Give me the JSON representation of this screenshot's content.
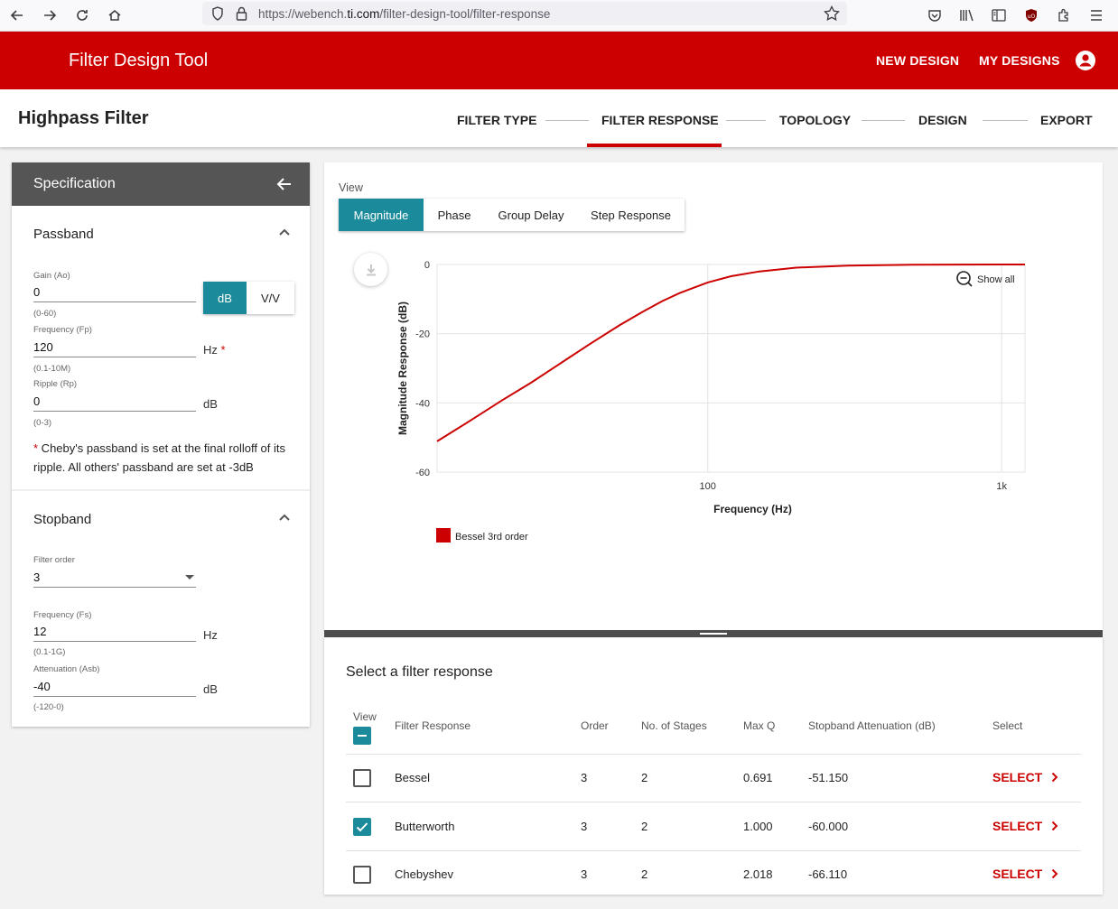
{
  "browser": {
    "url_prefix": "https://webench.",
    "url_domain": "ti.com",
    "url_path": "/filter-design-tool/filter-response"
  },
  "app": {
    "title": "Filter Design Tool",
    "nav": [
      "NEW DESIGN",
      "MY DESIGNS"
    ],
    "brand_color": "#cc0000"
  },
  "page": {
    "title": "Highpass Filter",
    "steps": [
      "FILTER TYPE",
      "FILTER RESPONSE",
      "TOPOLOGY",
      "DESIGN",
      "EXPORT"
    ],
    "active_step": "FILTER RESPONSE"
  },
  "spec": {
    "title": "Specification",
    "passband": {
      "title": "Passband",
      "gain": {
        "label": "Gain (Ao)",
        "value": "0",
        "hint": "(0-60)"
      },
      "unit_toggle": {
        "on": "dB",
        "off": "V/V"
      },
      "frequency": {
        "label": "Frequency (Fp)",
        "value": "120",
        "unit": "Hz",
        "required_mark": "*",
        "hint": "(0.1-10M)"
      },
      "ripple": {
        "label": "Ripple (Rp)",
        "value": "0",
        "unit": "dB",
        "hint": "(0-3)"
      },
      "note_mark": "*",
      "note": " Cheby's passband is set at the final rolloff of its ripple. All others' passband are set at -3dB"
    },
    "stopband": {
      "title": "Stopband",
      "order": {
        "label": "Filter order",
        "value": "3"
      },
      "frequency": {
        "label": "Frequency (Fs)",
        "value": "12",
        "unit": "Hz",
        "hint": "(0.1-1G)"
      },
      "attenuation": {
        "label": "Attenuation (Asb)",
        "value": "-40",
        "unit": "dB",
        "hint": "(-120-0)"
      }
    }
  },
  "view": {
    "label": "View",
    "tabs": [
      "Magnitude",
      "Phase",
      "Group Delay",
      "Step Response"
    ],
    "active": "Magnitude",
    "show_all": "Show all"
  },
  "chart_data": {
    "type": "line",
    "xlabel": "Frequency (Hz)",
    "ylabel": "Magnitude Response (dB)",
    "x_scale": "log",
    "xlim": [
      12,
      1200
    ],
    "ylim": [
      -60,
      0
    ],
    "x_ticks": [
      {
        "value": 100,
        "label": "100"
      },
      {
        "value": 1000,
        "label": "1k"
      }
    ],
    "y_ticks": [
      {
        "value": 0,
        "label": "0"
      },
      {
        "value": -20,
        "label": "-20"
      },
      {
        "value": -40,
        "label": "-40"
      },
      {
        "value": -60,
        "label": "-60"
      }
    ],
    "grid": true,
    "legend": "bottom-left",
    "series": [
      {
        "name": "Bessel 3rd order",
        "color": "#cc0000",
        "x": [
          12,
          15,
          20,
          25,
          30,
          40,
          50,
          60,
          70,
          80,
          100,
          120,
          150,
          200,
          300,
          500,
          700,
          1000,
          1200
        ],
        "y": [
          -51.1,
          -46.0,
          -39.2,
          -34.2,
          -29.8,
          -22.8,
          -17.6,
          -13.7,
          -10.6,
          -8.3,
          -5.2,
          -3.4,
          -2.0,
          -0.9,
          -0.3,
          -0.07,
          -0.03,
          -0.01,
          0.0
        ]
      }
    ]
  },
  "table": {
    "title": "Select a filter response",
    "headers": {
      "view": "View",
      "response": "Filter Response",
      "order": "Order",
      "stages": "No. of Stages",
      "maxq": "Max Q",
      "atten": "Stopband Attenuation (dB)",
      "select": "Select"
    },
    "select_label": "SELECT",
    "rows": [
      {
        "name": "Bessel",
        "order": "3",
        "stages": "2",
        "maxq": "0.691",
        "atten": "-51.150",
        "checked": false
      },
      {
        "name": "Butterworth",
        "order": "3",
        "stages": "2",
        "maxq": "1.000",
        "atten": "-60.000",
        "checked": true
      },
      {
        "name": "Chebyshev",
        "order": "3",
        "stages": "2",
        "maxq": "2.018",
        "atten": "-66.110",
        "checked": false
      }
    ]
  },
  "colors": {
    "accent": "#1b8a9a",
    "brand": "#cc0000"
  }
}
